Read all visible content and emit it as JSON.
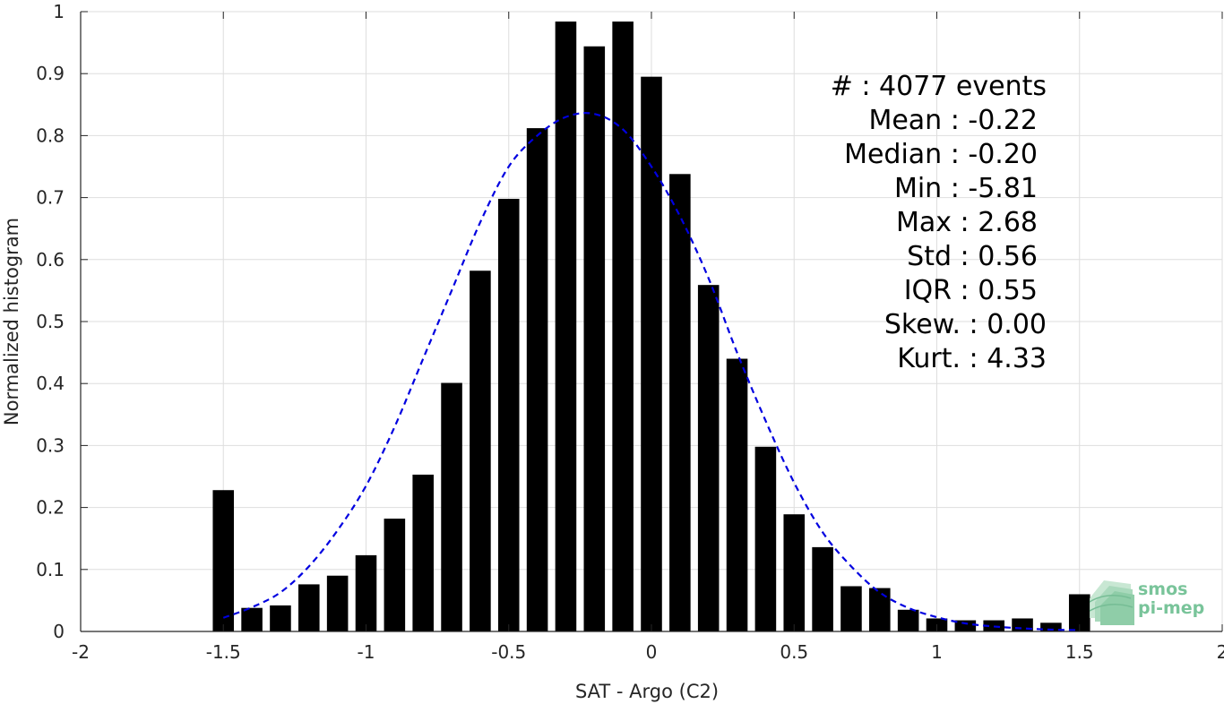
{
  "chart_data": {
    "type": "bar",
    "title": "",
    "xlabel": "SAT - Argo (C2)",
    "ylabel": "Normalized histogram",
    "xlim": [
      -2,
      2
    ],
    "ylim": [
      0,
      1
    ],
    "x_ticks": [
      -2,
      -1.5,
      -1,
      -0.5,
      0,
      0.5,
      1,
      1.5,
      2
    ],
    "x_tick_labels": [
      "-2",
      "-1.5",
      "-1",
      "-0.5",
      "0",
      "0.5",
      "1",
      "1.5",
      "2"
    ],
    "y_ticks": [
      0,
      0.1,
      0.2,
      0.3,
      0.4,
      0.5,
      0.6,
      0.7,
      0.8,
      0.9,
      1
    ],
    "y_tick_labels": [
      "0",
      "0.1",
      "0.2",
      "0.3",
      "0.4",
      "0.5",
      "0.6",
      "0.7",
      "0.8",
      "0.9",
      "1"
    ],
    "grid": true,
    "bar_color": "#000000",
    "bins": {
      "x": [
        -1.5,
        -1.4,
        -1.3,
        -1.2,
        -1.1,
        -1.0,
        -0.9,
        -0.8,
        -0.7,
        -0.6,
        -0.5,
        -0.4,
        -0.3,
        -0.2,
        -0.1,
        0.0,
        0.1,
        0.2,
        0.3,
        0.4,
        0.5,
        0.6,
        0.7,
        0.8,
        0.9,
        1.0,
        1.1,
        1.2,
        1.3,
        1.4,
        1.5
      ],
      "values": [
        0.228,
        0.038,
        0.042,
        0.076,
        0.09,
        0.123,
        0.182,
        0.253,
        0.401,
        0.582,
        0.698,
        0.812,
        0.984,
        0.944,
        0.984,
        0.895,
        0.738,
        0.559,
        0.44,
        0.298,
        0.189,
        0.136,
        0.073,
        0.07,
        0.035,
        0.021,
        0.018,
        0.018,
        0.021,
        0.014,
        0.06
      ]
    },
    "fit": {
      "style": "dashed",
      "color": "#0000e0",
      "x": [
        -1.5,
        -1.4,
        -1.3,
        -1.2,
        -1.1,
        -1.0,
        -0.9,
        -0.8,
        -0.7,
        -0.6,
        -0.5,
        -0.4,
        -0.3,
        -0.2,
        -0.1,
        0.0,
        0.1,
        0.2,
        0.3,
        0.4,
        0.5,
        0.6,
        0.7,
        0.8,
        0.9,
        1.0,
        1.1,
        1.2,
        1.3,
        1.4,
        1.5
      ],
      "y": [
        0.022,
        0.039,
        0.063,
        0.105,
        0.163,
        0.235,
        0.33,
        0.44,
        0.55,
        0.66,
        0.75,
        0.8,
        0.83,
        0.835,
        0.81,
        0.75,
        0.67,
        0.57,
        0.45,
        0.34,
        0.24,
        0.16,
        0.105,
        0.063,
        0.038,
        0.023,
        0.013,
        0.008,
        0.005,
        0.003,
        0.002
      ]
    },
    "annotations": [
      "#  : 4077 events",
      "Mean : -0.22",
      "Median : -0.20",
      "Min : -5.81",
      "Max : 2.68",
      "Std : 0.56",
      "IQR : 0.55",
      "Skew. : 0.00",
      "Kurt. : 4.33"
    ]
  },
  "logo": {
    "line1": "smos",
    "line2": "pi-mep",
    "color": "#79c49a"
  }
}
